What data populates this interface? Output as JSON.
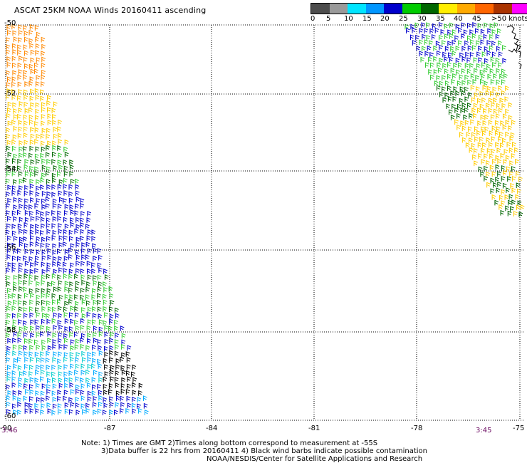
{
  "title": "ASCAT 25KM NOAA Winds 20160411 ascending",
  "legend": {
    "colors": [
      "#4d4d4d",
      "#9a9a9a",
      "#00e5ff",
      "#0096ff",
      "#0000cc",
      "#00cc00",
      "#006600",
      "#ffee00",
      "#ffaa00",
      "#ff6600",
      "#aa3300",
      "#ff00ff",
      "#8800cc"
    ],
    "labels": [
      "0",
      "5",
      "10",
      "15",
      "20",
      "25",
      "30",
      "35",
      "40",
      "45",
      ">50 knots"
    ]
  },
  "map": {
    "lat_labels": [
      "-50",
      "-52",
      "-54",
      "-56",
      "-58",
      "-60"
    ],
    "lon_labels": [
      "-90",
      "-87",
      "-84",
      "-81",
      "-78",
      "-75"
    ],
    "time_left": "3:46",
    "time_right": "3:45",
    "barb_colors": {
      "orange": "#ff8800",
      "yellow": "#ffcc00",
      "lightgreen": "#33cc33",
      "darkgreen": "#006600",
      "blue": "#0000cc",
      "lightblue": "#00aaff",
      "cyan": "#00cccc",
      "black": "#000000"
    }
  },
  "notes": {
    "line1": "Note: 1) Times are GMT 2)Times along bottom correspond to measurement at -55S",
    "line2": "3)Data buffer is 22 hrs from 20160411 4) Black wind barbs indicate possible contamination",
    "line3": "NOAA/NESDIS/Center for Satellite Applications and Research"
  }
}
